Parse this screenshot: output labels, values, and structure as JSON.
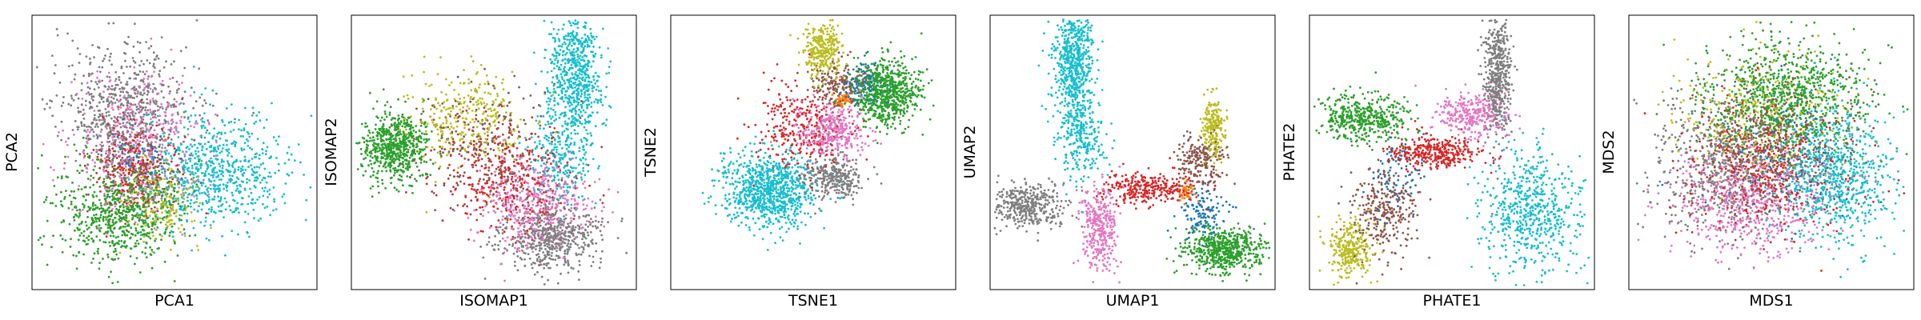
{
  "figure": {
    "panel_count": 6
  },
  "palette": {
    "blue": "#1f77b4",
    "brown": "#8c564b",
    "red": "#d62728",
    "orange": "#ff7f0e",
    "pink": "#e377c2",
    "gray": "#7f7f7f",
    "olive": "#bcbd22",
    "green": "#2ca02c",
    "cyan": "#17becf",
    "purple": "#9467bd"
  },
  "chart_data": [
    {
      "type": "scatter",
      "title": "",
      "xlabel": "PCA1",
      "ylabel": "PCA2",
      "ticks_visible": false,
      "grid": false,
      "legend": "none",
      "clusters": [
        {
          "color": "cyan",
          "cx": 0.64,
          "cy": 0.57,
          "sx": 0.14,
          "sy": 0.1,
          "n": 750
        },
        {
          "color": "gray",
          "cx": 0.33,
          "cy": 0.33,
          "sx": 0.12,
          "sy": 0.11,
          "n": 600
        },
        {
          "color": "pink",
          "cx": 0.36,
          "cy": 0.47,
          "sx": 0.11,
          "sy": 0.13,
          "n": 450
        },
        {
          "color": "red",
          "cx": 0.36,
          "cy": 0.55,
          "sx": 0.07,
          "sy": 0.08,
          "n": 250
        },
        {
          "color": "olive",
          "cx": 0.45,
          "cy": 0.68,
          "sx": 0.07,
          "sy": 0.08,
          "n": 200
        },
        {
          "color": "green",
          "cx": 0.3,
          "cy": 0.72,
          "sx": 0.11,
          "sy": 0.09,
          "n": 700
        },
        {
          "color": "brown",
          "cx": 0.35,
          "cy": 0.58,
          "sx": 0.08,
          "sy": 0.09,
          "n": 150
        },
        {
          "color": "blue",
          "cx": 0.38,
          "cy": 0.52,
          "sx": 0.06,
          "sy": 0.07,
          "n": 80
        }
      ]
    },
    {
      "type": "scatter",
      "title": "",
      "xlabel": "ISOMAP1",
      "ylabel": "ISOMAP2",
      "ticks_visible": false,
      "grid": false,
      "legend": "none",
      "clusters": [
        {
          "color": "cyan",
          "cx": 0.79,
          "cy": 0.22,
          "sx": 0.05,
          "sy": 0.12,
          "n": 650
        },
        {
          "color": "cyan",
          "cx": 0.74,
          "cy": 0.52,
          "sx": 0.06,
          "sy": 0.1,
          "n": 250
        },
        {
          "color": "green",
          "cx": 0.15,
          "cy": 0.48,
          "sx": 0.06,
          "sy": 0.06,
          "n": 650
        },
        {
          "color": "olive",
          "cx": 0.4,
          "cy": 0.38,
          "sx": 0.1,
          "sy": 0.09,
          "n": 300
        },
        {
          "color": "brown",
          "cx": 0.48,
          "cy": 0.48,
          "sx": 0.12,
          "sy": 0.1,
          "n": 300
        },
        {
          "color": "red",
          "cx": 0.55,
          "cy": 0.6,
          "sx": 0.12,
          "sy": 0.1,
          "n": 350
        },
        {
          "color": "pink",
          "cx": 0.66,
          "cy": 0.7,
          "sx": 0.1,
          "sy": 0.08,
          "n": 450
        },
        {
          "color": "gray",
          "cx": 0.7,
          "cy": 0.82,
          "sx": 0.09,
          "sy": 0.06,
          "n": 550
        }
      ]
    },
    {
      "type": "scatter",
      "title": "",
      "xlabel": "TSNE1",
      "ylabel": "TSNE2",
      "ticks_visible": false,
      "grid": false,
      "legend": "none",
      "clusters": [
        {
          "color": "cyan",
          "cx": 0.34,
          "cy": 0.64,
          "sx": 0.08,
          "sy": 0.07,
          "n": 900
        },
        {
          "color": "gray",
          "cx": 0.57,
          "cy": 0.59,
          "sx": 0.05,
          "sy": 0.04,
          "n": 300
        },
        {
          "color": "pink",
          "cx": 0.57,
          "cy": 0.42,
          "sx": 0.06,
          "sy": 0.05,
          "n": 350
        },
        {
          "color": "red",
          "cx": 0.45,
          "cy": 0.41,
          "sx": 0.08,
          "sy": 0.08,
          "n": 300
        },
        {
          "color": "olive",
          "cx": 0.53,
          "cy": 0.12,
          "sx": 0.035,
          "sy": 0.05,
          "n": 300
        },
        {
          "color": "brown",
          "cx": 0.58,
          "cy": 0.25,
          "sx": 0.05,
          "sy": 0.05,
          "n": 180
        },
        {
          "color": "green",
          "cx": 0.76,
          "cy": 0.28,
          "sx": 0.06,
          "sy": 0.06,
          "n": 700
        },
        {
          "color": "blue",
          "cx": 0.68,
          "cy": 0.25,
          "sx": 0.04,
          "sy": 0.04,
          "n": 120
        },
        {
          "color": "orange",
          "cx": 0.6,
          "cy": 0.31,
          "sx": 0.015,
          "sy": 0.015,
          "n": 40
        }
      ]
    },
    {
      "type": "scatter",
      "title": "",
      "xlabel": "UMAP1",
      "ylabel": "UMAP2",
      "ticks_visible": false,
      "grid": false,
      "legend": "none",
      "clusters": [
        {
          "color": "cyan",
          "cx": 0.29,
          "cy": 0.16,
          "sx": 0.035,
          "sy": 0.12,
          "n": 650
        },
        {
          "color": "cyan",
          "cx": 0.32,
          "cy": 0.45,
          "sx": 0.04,
          "sy": 0.08,
          "n": 250
        },
        {
          "color": "gray",
          "cx": 0.13,
          "cy": 0.7,
          "sx": 0.07,
          "sy": 0.04,
          "n": 400
        },
        {
          "color": "pink",
          "cx": 0.38,
          "cy": 0.77,
          "sx": 0.03,
          "sy": 0.08,
          "n": 350
        },
        {
          "color": "red",
          "cx": 0.55,
          "cy": 0.63,
          "sx": 0.08,
          "sy": 0.03,
          "n": 300
        },
        {
          "color": "brown",
          "cx": 0.74,
          "cy": 0.53,
          "sx": 0.04,
          "sy": 0.05,
          "n": 200
        },
        {
          "color": "olive",
          "cx": 0.79,
          "cy": 0.4,
          "sx": 0.02,
          "sy": 0.06,
          "n": 220
        },
        {
          "color": "green",
          "cx": 0.83,
          "cy": 0.86,
          "sx": 0.07,
          "sy": 0.04,
          "n": 600
        },
        {
          "color": "blue",
          "cx": 0.75,
          "cy": 0.72,
          "sx": 0.04,
          "sy": 0.05,
          "n": 140
        },
        {
          "color": "orange",
          "cx": 0.69,
          "cy": 0.65,
          "sx": 0.015,
          "sy": 0.02,
          "n": 40
        }
      ]
    },
    {
      "type": "scatter",
      "title": "",
      "xlabel": "PHATE1",
      "ylabel": "PHATE2",
      "ticks_visible": false,
      "grid": false,
      "legend": "none",
      "clusters": [
        {
          "color": "gray",
          "cx": 0.66,
          "cy": 0.22,
          "sx": 0.025,
          "sy": 0.12,
          "n": 500
        },
        {
          "color": "pink",
          "cx": 0.57,
          "cy": 0.36,
          "sx": 0.06,
          "sy": 0.04,
          "n": 300
        },
        {
          "color": "red",
          "cx": 0.44,
          "cy": 0.5,
          "sx": 0.08,
          "sy": 0.03,
          "n": 350
        },
        {
          "color": "green",
          "cx": 0.18,
          "cy": 0.37,
          "sx": 0.08,
          "sy": 0.04,
          "n": 450
        },
        {
          "color": "cyan",
          "cx": 0.78,
          "cy": 0.72,
          "sx": 0.09,
          "sy": 0.11,
          "n": 600
        },
        {
          "color": "brown",
          "cx": 0.26,
          "cy": 0.72,
          "sx": 0.06,
          "sy": 0.09,
          "n": 300
        },
        {
          "color": "olive",
          "cx": 0.14,
          "cy": 0.86,
          "sx": 0.04,
          "sy": 0.05,
          "n": 300
        },
        {
          "color": "blue",
          "cx": 0.3,
          "cy": 0.58,
          "sx": 0.05,
          "sy": 0.06,
          "n": 80
        }
      ]
    },
    {
      "type": "scatter",
      "title": "",
      "xlabel": "MDS1",
      "ylabel": "MDS2",
      "ticks_visible": false,
      "grid": false,
      "legend": "none",
      "clusters": [
        {
          "color": "green",
          "cx": 0.55,
          "cy": 0.3,
          "sx": 0.15,
          "sy": 0.11,
          "n": 900
        },
        {
          "color": "olive",
          "cx": 0.45,
          "cy": 0.35,
          "sx": 0.14,
          "sy": 0.1,
          "n": 350
        },
        {
          "color": "gray",
          "cx": 0.33,
          "cy": 0.55,
          "sx": 0.12,
          "sy": 0.13,
          "n": 600
        },
        {
          "color": "pink",
          "cx": 0.42,
          "cy": 0.68,
          "sx": 0.14,
          "sy": 0.1,
          "n": 600
        },
        {
          "color": "red",
          "cx": 0.48,
          "cy": 0.55,
          "sx": 0.14,
          "sy": 0.12,
          "n": 500
        },
        {
          "color": "cyan",
          "cx": 0.72,
          "cy": 0.58,
          "sx": 0.1,
          "sy": 0.12,
          "n": 800
        },
        {
          "color": "brown",
          "cx": 0.5,
          "cy": 0.45,
          "sx": 0.14,
          "sy": 0.12,
          "n": 300
        },
        {
          "color": "blue",
          "cx": 0.5,
          "cy": 0.5,
          "sx": 0.14,
          "sy": 0.12,
          "n": 150
        }
      ]
    }
  ]
}
